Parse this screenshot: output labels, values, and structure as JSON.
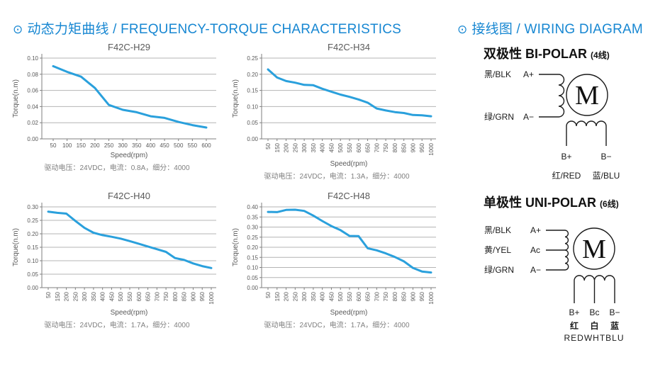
{
  "colors": {
    "accent_blue": "#1787d2",
    "line_blue": "#2aa0dc",
    "grid_gray": "#b4b4b4",
    "axis_gray": "#7f7f7f",
    "chart_text_gray": "#595959",
    "caption_gray": "#7f7f7f",
    "wiring_black": "#1a1a1a"
  },
  "headers": {
    "left": {
      "bullet": "⊙",
      "title": "动态力矩曲线 / FREQUENCY-TORQUE CHARACTERISTICS"
    },
    "right": {
      "bullet": "⊙",
      "title": "接线图 / WIRING DIAGRAM"
    }
  },
  "chart_data": [
    {
      "type": "line",
      "title": "F42C-H29",
      "xlabel": "Speed(rpm)",
      "ylabel": "Torque(n.m)",
      "caption": "驱动电压：24VDC，电流：0.8A，细分：4000",
      "categories": [
        "50",
        "100",
        "150",
        "200",
        "250",
        "300",
        "350",
        "400",
        "450",
        "500",
        "550",
        "600"
      ],
      "values": [
        0.09,
        0.083,
        0.077,
        0.063,
        0.042,
        0.036,
        0.033,
        0.028,
        0.026,
        0.021,
        0.017,
        0.014
      ],
      "ylim": [
        0,
        0.1
      ],
      "ytick_step": 0.02,
      "rotate_x_labels": false,
      "grid": true,
      "legend": false
    },
    {
      "type": "line",
      "title": "F42C-H34",
      "xlabel": "Speed(rpm)",
      "ylabel": "Torque(n.m)",
      "caption": "驱动电压：24VDC，电流：1.3A，细分：4000",
      "categories": [
        "50",
        "150",
        "200",
        "250",
        "300",
        "350",
        "400",
        "450",
        "500",
        "550",
        "600",
        "650",
        "700",
        "750",
        "800",
        "850",
        "900",
        "950",
        "1000"
      ],
      "values": [
        0.215,
        0.19,
        0.179,
        0.174,
        0.167,
        0.166,
        0.155,
        0.146,
        0.137,
        0.13,
        0.122,
        0.112,
        0.094,
        0.088,
        0.083,
        0.08,
        0.074,
        0.073,
        0.07
      ],
      "ylim": [
        0,
        0.25
      ],
      "ytick_step": 0.05,
      "rotate_x_labels": true,
      "grid": true,
      "legend": false
    },
    {
      "type": "line",
      "title": "F42C-H40",
      "xlabel": "Speed(rpm)",
      "ylabel": "Torque(n.m)",
      "caption": "驱动电压：24VDC，电流：1.7A，细分：4000",
      "categories": [
        "50",
        "150",
        "200",
        "250",
        "300",
        "350",
        "400",
        "450",
        "500",
        "550",
        "600",
        "650",
        "700",
        "750",
        "800",
        "850",
        "900",
        "950",
        "1000"
      ],
      "values": [
        0.282,
        0.278,
        0.275,
        0.248,
        0.222,
        0.204,
        0.195,
        0.189,
        0.182,
        0.173,
        0.163,
        0.153,
        0.143,
        0.133,
        0.11,
        0.103,
        0.09,
        0.08,
        0.073
      ],
      "ylim": [
        0,
        0.3
      ],
      "ytick_step": 0.05,
      "rotate_x_labels": true,
      "grid": true,
      "legend": false
    },
    {
      "type": "line",
      "title": "F42C-H48",
      "xlabel": "Speed(rpm)",
      "ylabel": "Torque(n.m)",
      "caption": "驱动电压：24VDC，电流：1.7A，细分：4000",
      "categories": [
        "50",
        "150",
        "200",
        "250",
        "300",
        "350",
        "400",
        "450",
        "500",
        "550",
        "600",
        "650",
        "700",
        "750",
        "800",
        "850",
        "900",
        "950",
        "1000"
      ],
      "values": [
        0.375,
        0.374,
        0.385,
        0.386,
        0.38,
        0.357,
        0.33,
        0.305,
        0.285,
        0.256,
        0.255,
        0.195,
        0.185,
        0.17,
        0.152,
        0.13,
        0.098,
        0.08,
        0.075
      ],
      "ylim": [
        0,
        0.4
      ],
      "ytick_step": 0.05,
      "rotate_x_labels": true,
      "grid": true,
      "legend": false
    }
  ],
  "wiring": {
    "bipolar": {
      "title_cn": "双极性",
      "title_en": "BI-POLAR",
      "wires": "(4线)",
      "motor_label": "M",
      "lead_black": "黑/BLK",
      "lead_green": "绿/GRN",
      "lead_red": "红/RED",
      "lead_blue": "蓝/BLU",
      "term_a_plus": "A+",
      "term_a_minus": "A−",
      "term_b_plus": "B+",
      "term_b_minus": "B−"
    },
    "unipolar": {
      "title_cn": "单极性",
      "title_en": "UNI-POLAR",
      "wires": "(6线)",
      "motor_label": "M",
      "lead_black": "黑/BLK",
      "lead_yellow": "黄/YEL",
      "lead_green": "绿/GRN",
      "lead_red_cn": "红",
      "lead_white_cn": "白",
      "lead_blue_cn": "蓝",
      "lead_rgb_en": "REDWHTBLU",
      "term_a_plus": "A+",
      "term_a_center": "Ac",
      "term_a_minus": "A−",
      "term_b_plus": "B+",
      "term_b_center": "Bc",
      "term_b_minus": "B−"
    }
  }
}
